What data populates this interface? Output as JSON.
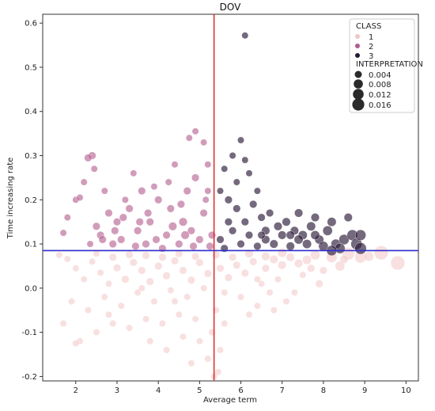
{
  "chart_data": {
    "type": "scatter",
    "title": "DOV",
    "xlabel": "Average term",
    "ylabel": "Time increasing rate",
    "xlim": [
      1.2,
      10.3
    ],
    "ylim": [
      -0.21,
      0.62
    ],
    "xticks": [
      "2",
      "3",
      "4",
      "5",
      "6",
      "7",
      "8",
      "9",
      "10"
    ],
    "yticks": [
      "-0.2",
      "-0.1",
      "0.0",
      "0.1",
      "0.2",
      "0.3",
      "0.4",
      "0.5",
      "0.6"
    ],
    "grid": false,
    "legend_position": "top-right",
    "reference_lines": {
      "vertical_x": 5.35,
      "vertical_color": "#e03030",
      "horizontal_y": 0.085,
      "horizontal_color": "#2c2ccc"
    },
    "legend": {
      "class_title": "CLASS",
      "classes": [
        {
          "label": "1",
          "color": "#f2c6c6"
        },
        {
          "label": "2",
          "color": "#b35a8c"
        },
        {
          "label": "3",
          "color": "#2a1838"
        }
      ],
      "size_title": "INTERPRETATION",
      "sizes": [
        {
          "label": "0.004",
          "value": 0.004
        },
        {
          "label": "0.008",
          "value": 0.008
        },
        {
          "label": "0.012",
          "value": 0.012
        },
        {
          "label": "0.016",
          "value": 0.016
        }
      ]
    },
    "series": [
      {
        "class": "1",
        "color": "#f2c6c6",
        "points": [
          [
            9.4,
            0.08,
            0.016
          ],
          [
            9.8,
            0.057,
            0.016
          ],
          [
            8.6,
            0.078,
            0.012
          ],
          [
            8.9,
            0.07,
            0.01
          ],
          [
            8.2,
            0.07,
            0.008
          ],
          [
            7.8,
            0.075,
            0.006
          ],
          [
            8.4,
            0.05,
            0.006
          ],
          [
            7.6,
            0.064,
            0.005
          ],
          [
            7.4,
            0.056,
            0.004
          ],
          [
            7.2,
            0.07,
            0.004
          ],
          [
            7.0,
            0.052,
            0.004
          ],
          [
            6.8,
            0.065,
            0.004
          ],
          [
            6.6,
            0.045,
            0.003
          ],
          [
            6.3,
            0.06,
            0.003
          ],
          [
            6.1,
            0.034,
            0.003
          ],
          [
            5.9,
            0.052,
            0.003
          ],
          [
            5.7,
            0.024,
            0.003
          ],
          [
            5.5,
            0.045,
            0.003
          ],
          [
            5.2,
            0.033,
            0.003
          ],
          [
            5.0,
            0.058,
            0.003
          ],
          [
            4.8,
            0.018,
            0.003
          ],
          [
            4.6,
            0.04,
            0.003
          ],
          [
            4.4,
            0.062,
            0.003
          ],
          [
            4.2,
            0.028,
            0.003
          ],
          [
            4.0,
            0.05,
            0.003
          ],
          [
            3.8,
            0.015,
            0.003
          ],
          [
            3.6,
            0.04,
            0.003
          ],
          [
            3.4,
            0.058,
            0.003
          ],
          [
            3.2,
            0.02,
            0.003
          ],
          [
            3.0,
            0.046,
            0.003
          ],
          [
            2.8,
            0.01,
            0.002
          ],
          [
            2.6,
            0.035,
            0.002
          ],
          [
            2.4,
            0.06,
            0.002
          ],
          [
            2.2,
            0.02,
            0.002
          ],
          [
            2.0,
            0.045,
            0.002
          ],
          [
            1.8,
            0.066,
            0.002
          ],
          [
            1.6,
            0.075,
            0.002
          ],
          [
            6.5,
            0.01,
            0.002
          ],
          [
            6.9,
            0.02,
            0.002
          ],
          [
            7.5,
            0.03,
            0.002
          ],
          [
            8.0,
            0.04,
            0.003
          ],
          [
            5.6,
            -0.01,
            0.002
          ],
          [
            5.1,
            0.0,
            0.002
          ],
          [
            4.7,
            -0.02,
            0.002
          ],
          [
            4.3,
            -0.005,
            0.002
          ],
          [
            3.9,
            -0.03,
            0.002
          ],
          [
            3.5,
            -0.01,
            0.002
          ],
          [
            3.1,
            -0.04,
            0.002
          ],
          [
            2.7,
            -0.02,
            0.002
          ],
          [
            2.3,
            -0.05,
            0.002
          ],
          [
            1.9,
            -0.03,
            0.002
          ],
          [
            6.0,
            -0.02,
            0.002
          ],
          [
            6.4,
            -0.04,
            0.002
          ],
          [
            6.7,
            -0.01,
            0.002
          ],
          [
            7.1,
            -0.03,
            0.002
          ],
          [
            5.4,
            -0.05,
            0.002
          ],
          [
            4.9,
            -0.07,
            0.002
          ],
          [
            4.5,
            -0.06,
            0.002
          ],
          [
            4.1,
            -0.08,
            0.002
          ],
          [
            3.7,
            -0.07,
            0.002
          ],
          [
            3.3,
            -0.09,
            0.002
          ],
          [
            2.9,
            -0.08,
            0.002
          ],
          [
            2.5,
            -0.1,
            0.002
          ],
          [
            2.1,
            -0.12,
            0.002
          ],
          [
            5.3,
            -0.1,
            0.002
          ],
          [
            5.0,
            -0.12,
            0.002
          ],
          [
            4.6,
            -0.11,
            0.002
          ],
          [
            4.2,
            -0.14,
            0.002
          ],
          [
            3.8,
            -0.12,
            0.002
          ],
          [
            5.5,
            -0.14,
            0.002
          ],
          [
            5.2,
            -0.16,
            0.002
          ],
          [
            4.8,
            -0.17,
            0.002
          ],
          [
            2.0,
            -0.125,
            0.002
          ],
          [
            1.7,
            -0.08,
            0.002
          ],
          [
            6.2,
            -0.06,
            0.002
          ],
          [
            6.8,
            -0.05,
            0.002
          ],
          [
            7.3,
            -0.01,
            0.002
          ],
          [
            7.9,
            0.01,
            0.003
          ],
          [
            8.5,
            0.065,
            0.004
          ],
          [
            9.1,
            0.072,
            0.006
          ],
          [
            5.8,
            0.07,
            0.003
          ],
          [
            6.2,
            0.078,
            0.004
          ],
          [
            6.6,
            0.072,
            0.004
          ],
          [
            7.0,
            0.08,
            0.005
          ],
          [
            5.4,
            0.075,
            0.003
          ],
          [
            4.9,
            0.072,
            0.003
          ],
          [
            4.5,
            0.078,
            0.003
          ],
          [
            4.1,
            0.07,
            0.003
          ],
          [
            3.7,
            0.074,
            0.003
          ],
          [
            3.3,
            0.076,
            0.003
          ],
          [
            2.9,
            0.07,
            0.003
          ],
          [
            2.5,
            0.078,
            0.002
          ],
          [
            5.6,
            -0.08,
            0.002
          ],
          [
            5.45,
            -0.19,
            0.002
          ],
          [
            5.35,
            -0.2,
            0.002
          ],
          [
            4.4,
            -0.03,
            0.002
          ],
          [
            3.6,
            0.0,
            0.002
          ],
          [
            2.8,
            -0.06,
            0.002
          ],
          [
            6.4,
            0.02,
            0.002
          ],
          [
            7.7,
            0.045,
            0.003
          ]
        ]
      },
      {
        "class": "2",
        "color": "#b35a8c",
        "points": [
          [
            2.4,
            0.3,
            0.003
          ],
          [
            2.3,
            0.295,
            0.003
          ],
          [
            2.45,
            0.27,
            0.002
          ],
          [
            2.2,
            0.24,
            0.002
          ],
          [
            2.0,
            0.2,
            0.002
          ],
          [
            2.1,
            0.205,
            0.002
          ],
          [
            1.8,
            0.16,
            0.002
          ],
          [
            1.7,
            0.125,
            0.002
          ],
          [
            2.5,
            0.14,
            0.003
          ],
          [
            2.6,
            0.12,
            0.003
          ],
          [
            2.8,
            0.17,
            0.003
          ],
          [
            3.0,
            0.15,
            0.003
          ],
          [
            3.1,
            0.11,
            0.003
          ],
          [
            3.3,
            0.18,
            0.003
          ],
          [
            3.5,
            0.13,
            0.003
          ],
          [
            3.6,
            0.22,
            0.003
          ],
          [
            3.4,
            0.26,
            0.002
          ],
          [
            3.8,
            0.15,
            0.003
          ],
          [
            4.0,
            0.2,
            0.003
          ],
          [
            4.2,
            0.12,
            0.003
          ],
          [
            4.3,
            0.18,
            0.003
          ],
          [
            4.5,
            0.1,
            0.003
          ],
          [
            4.6,
            0.15,
            0.004
          ],
          [
            4.7,
            0.22,
            0.003
          ],
          [
            4.8,
            0.13,
            0.003
          ],
          [
            4.9,
            0.25,
            0.003
          ],
          [
            5.0,
            0.11,
            0.003
          ],
          [
            5.1,
            0.17,
            0.003
          ],
          [
            5.2,
            0.22,
            0.002
          ],
          [
            4.75,
            0.34,
            0.002
          ],
          [
            4.9,
            0.355,
            0.002
          ],
          [
            5.1,
            0.33,
            0.002
          ],
          [
            5.2,
            0.28,
            0.002
          ],
          [
            4.4,
            0.28,
            0.002
          ],
          [
            3.9,
            0.23,
            0.002
          ],
          [
            3.2,
            0.2,
            0.002
          ],
          [
            2.7,
            0.22,
            0.002
          ],
          [
            2.9,
            0.1,
            0.003
          ],
          [
            3.7,
            0.1,
            0.003
          ],
          [
            4.1,
            0.09,
            0.003
          ],
          [
            5.3,
            0.12,
            0.003
          ],
          [
            5.25,
            0.095,
            0.003
          ],
          [
            4.85,
            0.095,
            0.003
          ],
          [
            3.95,
            0.11,
            0.003
          ],
          [
            3.45,
            0.095,
            0.003
          ],
          [
            2.35,
            0.1,
            0.002
          ],
          [
            4.55,
            0.19,
            0.003
          ],
          [
            3.75,
            0.17,
            0.003
          ],
          [
            2.95,
            0.13,
            0.003
          ],
          [
            4.25,
            0.24,
            0.002
          ],
          [
            5.15,
            0.2,
            0.002
          ],
          [
            4.65,
            0.12,
            0.004
          ],
          [
            4.35,
            0.14,
            0.004
          ],
          [
            3.55,
            0.15,
            0.003
          ],
          [
            3.15,
            0.16,
            0.003
          ],
          [
            2.65,
            0.11,
            0.003
          ]
        ]
      },
      {
        "class": "3",
        "color": "#2a1838",
        "points": [
          [
            6.1,
            0.572,
            0.002
          ],
          [
            6.0,
            0.335,
            0.002
          ],
          [
            5.8,
            0.3,
            0.002
          ],
          [
            5.6,
            0.27,
            0.002
          ],
          [
            6.2,
            0.26,
            0.002
          ],
          [
            6.1,
            0.29,
            0.002
          ],
          [
            5.5,
            0.22,
            0.002
          ],
          [
            5.7,
            0.2,
            0.003
          ],
          [
            5.9,
            0.18,
            0.003
          ],
          [
            6.3,
            0.19,
            0.003
          ],
          [
            6.5,
            0.16,
            0.003
          ],
          [
            6.7,
            0.17,
            0.003
          ],
          [
            6.9,
            0.14,
            0.004
          ],
          [
            7.1,
            0.15,
            0.004
          ],
          [
            7.3,
            0.13,
            0.004
          ],
          [
            7.5,
            0.12,
            0.005
          ],
          [
            7.7,
            0.14,
            0.005
          ],
          [
            7.9,
            0.11,
            0.005
          ],
          [
            8.1,
            0.13,
            0.006
          ],
          [
            8.3,
            0.1,
            0.006
          ],
          [
            8.5,
            0.11,
            0.007
          ],
          [
            8.7,
            0.12,
            0.008
          ],
          [
            8.8,
            0.1,
            0.009
          ],
          [
            8.9,
            0.09,
            0.01
          ],
          [
            8.6,
            0.16,
            0.004
          ],
          [
            8.2,
            0.15,
            0.005
          ],
          [
            7.8,
            0.16,
            0.004
          ],
          [
            7.4,
            0.17,
            0.004
          ],
          [
            7.0,
            0.12,
            0.004
          ],
          [
            6.6,
            0.13,
            0.004
          ],
          [
            6.2,
            0.12,
            0.003
          ],
          [
            5.8,
            0.13,
            0.003
          ],
          [
            5.5,
            0.11,
            0.003
          ],
          [
            5.6,
            0.09,
            0.003
          ],
          [
            6.0,
            0.1,
            0.003
          ],
          [
            6.4,
            0.095,
            0.003
          ],
          [
            6.8,
            0.1,
            0.004
          ],
          [
            7.2,
            0.095,
            0.004
          ],
          [
            7.6,
            0.1,
            0.005
          ],
          [
            8.0,
            0.095,
            0.006
          ],
          [
            8.4,
            0.09,
            0.007
          ],
          [
            8.2,
            0.085,
            0.007
          ],
          [
            7.4,
            0.11,
            0.005
          ],
          [
            6.6,
            0.11,
            0.004
          ],
          [
            5.7,
            0.15,
            0.003
          ],
          [
            6.1,
            0.15,
            0.003
          ],
          [
            6.5,
            0.12,
            0.003
          ],
          [
            7.2,
            0.12,
            0.004
          ],
          [
            7.8,
            0.12,
            0.005
          ],
          [
            8.9,
            0.12,
            0.008
          ],
          [
            5.9,
            0.24,
            0.002
          ],
          [
            6.4,
            0.22,
            0.002
          ]
        ]
      }
    ]
  }
}
